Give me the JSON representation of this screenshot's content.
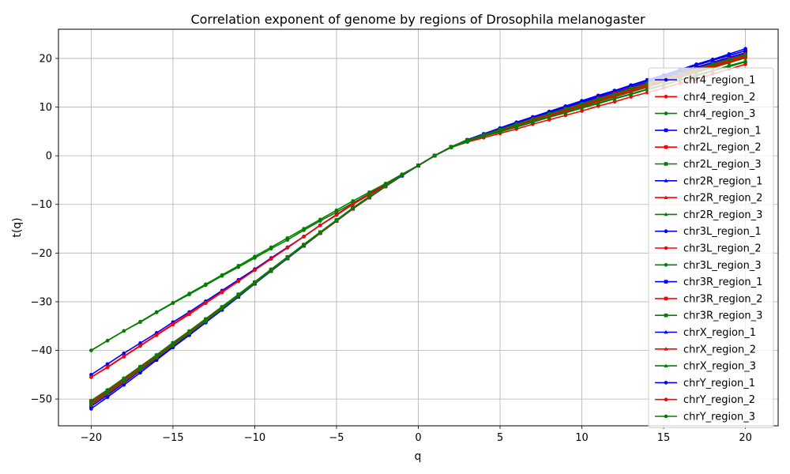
{
  "chart_data": {
    "type": "line",
    "title": "Correlation exponent of genome by regions of Drosophila melanogaster",
    "xlabel": "q",
    "ylabel": "t(q)",
    "xlim": [
      -22,
      22
    ],
    "ylim": [
      -55.5,
      26
    ],
    "x_ticks": [
      -20,
      -15,
      -10,
      -5,
      0,
      5,
      10,
      15,
      20
    ],
    "y_ticks": [
      -50,
      -40,
      -30,
      -20,
      -10,
      0,
      10,
      20
    ],
    "grid": true,
    "legend_position": "right",
    "x": [
      -20,
      -19,
      -18,
      -17,
      -16,
      -15,
      -14,
      -13,
      -12,
      -11,
      -10,
      -9,
      -8,
      -7,
      -6,
      -5,
      -4,
      -3,
      -2,
      -1,
      0,
      1,
      2,
      3,
      4,
      5,
      6,
      7,
      8,
      9,
      10,
      11,
      12,
      13,
      14,
      15,
      16,
      17,
      18,
      19,
      20
    ],
    "series": [
      {
        "name": "chr4_region_1",
        "color": "#0000ff",
        "marker": "circle",
        "values": [
          -50.5,
          -48.3,
          -46.0,
          -43.6,
          -41.2,
          -38.8,
          -36.4,
          -34.0,
          -31.5,
          -28.9,
          -26.2,
          -23.6,
          -21.0,
          -18.4,
          -15.8,
          -13.4,
          -10.8,
          -8.6,
          -6.2,
          -4.0,
          -2.0,
          0.0,
          1.8,
          3.2,
          4.3,
          5.3,
          6.4,
          7.5,
          8.6,
          9.6,
          10.7,
          11.7,
          12.8,
          13.8,
          14.9,
          15.9,
          17.0,
          18.0,
          19.0,
          20.0,
          21.0
        ]
      },
      {
        "name": "chr4_region_2",
        "color": "#ff0000",
        "marker": "circle",
        "values": [
          -45.5,
          -43.5,
          -41.3,
          -39.1,
          -36.9,
          -34.7,
          -32.6,
          -30.3,
          -28.1,
          -25.8,
          -23.5,
          -21.2,
          -18.9,
          -16.6,
          -14.3,
          -12.2,
          -10.0,
          -8.0,
          -6.0,
          -3.9,
          -2.0,
          0.0,
          1.7,
          2.8,
          3.7,
          4.6,
          5.5,
          6.5,
          7.4,
          8.3,
          9.2,
          10.2,
          11.1,
          12.1,
          13.0,
          13.9,
          14.9,
          15.8,
          16.8,
          17.8,
          18.8
        ]
      },
      {
        "name": "chr4_region_3",
        "color": "#008000",
        "marker": "circle",
        "values": [
          -40.0,
          -38.0,
          -36.0,
          -34.2,
          -32.2,
          -30.3,
          -28.5,
          -26.6,
          -24.7,
          -22.9,
          -21.0,
          -19.1,
          -17.3,
          -15.3,
          -13.4,
          -11.6,
          -9.7,
          -7.8,
          -5.8,
          -3.9,
          -2.0,
          0.0,
          1.7,
          3.0,
          4.0,
          4.9,
          5.9,
          6.9,
          7.9,
          8.9,
          9.9,
          10.8,
          11.8,
          12.7,
          13.7,
          14.6,
          15.6,
          16.6,
          17.5,
          18.5,
          19.4
        ]
      },
      {
        "name": "chr2L_region_1",
        "color": "#0000ff",
        "marker": "square",
        "values": [
          -51.5,
          -49.2,
          -46.7,
          -44.2,
          -41.7,
          -39.2,
          -36.7,
          -34.2,
          -31.6,
          -29.0,
          -26.3,
          -23.7,
          -21.1,
          -18.5,
          -15.9,
          -13.4,
          -10.9,
          -8.6,
          -6.3,
          -4.1,
          -2.0,
          0.0,
          1.8,
          3.2,
          4.4,
          5.5,
          6.6,
          7.7,
          8.8,
          9.8,
          10.9,
          12.0,
          13.0,
          14.1,
          15.1,
          16.2,
          17.2,
          18.2,
          19.2,
          20.2,
          21.2
        ]
      },
      {
        "name": "chr2L_region_2",
        "color": "#ff0000",
        "marker": "square",
        "values": [
          -51.0,
          -48.7,
          -46.3,
          -43.9,
          -41.4,
          -38.9,
          -36.5,
          -34.0,
          -31.4,
          -28.8,
          -26.2,
          -23.7,
          -21.1,
          -18.5,
          -15.9,
          -13.4,
          -10.8,
          -8.5,
          -6.2,
          -4.0,
          -2.0,
          0.0,
          1.8,
          3.1,
          4.2,
          5.2,
          6.2,
          7.3,
          8.3,
          9.3,
          10.3,
          11.3,
          12.3,
          13.3,
          14.3,
          15.3,
          16.3,
          17.3,
          18.3,
          19.3,
          20.3
        ]
      },
      {
        "name": "chr2L_region_3",
        "color": "#008000",
        "marker": "square",
        "values": [
          -51.0,
          -48.8,
          -46.4,
          -44.0,
          -41.5,
          -39.0,
          -36.5,
          -34.0,
          -31.4,
          -28.8,
          -26.2,
          -23.6,
          -21.0,
          -18.4,
          -15.8,
          -13.3,
          -10.8,
          -8.5,
          -6.2,
          -4.0,
          -2.0,
          0.0,
          1.8,
          3.2,
          4.3,
          5.4,
          6.4,
          7.5,
          8.6,
          9.6,
          10.7,
          11.7,
          12.8,
          13.8,
          14.9,
          15.9,
          16.9,
          17.9,
          18.9,
          19.9,
          20.9
        ]
      },
      {
        "name": "chr2R_region_1",
        "color": "#0000ff",
        "marker": "triangle",
        "values": [
          -50.8,
          -48.5,
          -46.1,
          -43.7,
          -41.3,
          -38.8,
          -36.4,
          -33.9,
          -31.3,
          -28.7,
          -26.1,
          -23.5,
          -20.9,
          -18.3,
          -15.8,
          -13.3,
          -10.8,
          -8.5,
          -6.2,
          -4.0,
          -2.0,
          0.0,
          1.8,
          3.2,
          4.4,
          5.5,
          6.6,
          7.6,
          8.7,
          9.8,
          10.8,
          11.9,
          12.9,
          14.0,
          15.0,
          16.0,
          17.1,
          18.1,
          19.1,
          20.1,
          21.1
        ]
      },
      {
        "name": "chr2R_region_2",
        "color": "#ff0000",
        "marker": "triangle",
        "values": [
          -50.8,
          -48.6,
          -46.2,
          -43.8,
          -41.3,
          -38.8,
          -36.4,
          -33.9,
          -31.3,
          -28.8,
          -26.2,
          -23.6,
          -21.0,
          -18.4,
          -15.8,
          -13.3,
          -10.8,
          -8.5,
          -6.2,
          -4.0,
          -2.0,
          0.0,
          1.8,
          3.1,
          4.2,
          5.2,
          6.3,
          7.3,
          8.3,
          9.3,
          10.3,
          11.4,
          12.4,
          13.4,
          14.4,
          15.4,
          16.4,
          17.4,
          18.4,
          19.4,
          20.4
        ]
      },
      {
        "name": "chr2R_region_3",
        "color": "#008000",
        "marker": "triangle",
        "values": [
          -50.6,
          -48.3,
          -45.9,
          -43.5,
          -41.1,
          -38.6,
          -36.2,
          -33.7,
          -31.1,
          -28.6,
          -26.0,
          -23.4,
          -20.8,
          -18.3,
          -15.7,
          -13.2,
          -10.7,
          -8.4,
          -6.2,
          -4.0,
          -2.0,
          0.0,
          1.8,
          3.1,
          4.2,
          5.2,
          6.3,
          7.3,
          8.4,
          9.4,
          10.4,
          11.4,
          12.4,
          13.4,
          14.4,
          15.5,
          16.5,
          17.5,
          18.5,
          19.5,
          20.5
        ]
      },
      {
        "name": "chr3L_region_1",
        "color": "#0000ff",
        "marker": "circle",
        "values": [
          -45.0,
          -42.8,
          -40.6,
          -38.5,
          -36.4,
          -34.2,
          -32.1,
          -29.9,
          -27.7,
          -25.5,
          -23.3,
          -21.0,
          -18.8,
          -16.6,
          -14.3,
          -12.1,
          -9.9,
          -7.9,
          -5.9,
          -3.9,
          -2.0,
          0.0,
          1.8,
          3.1,
          4.3,
          5.4,
          6.5,
          7.6,
          8.6,
          9.7,
          10.8,
          11.8,
          12.9,
          13.9,
          15.0,
          16.0,
          17.0,
          18.1,
          19.1,
          20.1,
          21.1
        ]
      },
      {
        "name": "chr3L_region_2",
        "color": "#ff0000",
        "marker": "circle",
        "values": [
          -45.5,
          -43.4,
          -41.2,
          -39.0,
          -36.8,
          -34.6,
          -32.4,
          -30.2,
          -28.0,
          -25.8,
          -23.5,
          -21.2,
          -18.9,
          -16.6,
          -14.3,
          -12.1,
          -9.9,
          -7.9,
          -5.9,
          -3.9,
          -2.0,
          0.0,
          1.8,
          3.0,
          4.1,
          5.1,
          6.1,
          7.1,
          8.1,
          9.1,
          10.1,
          11.1,
          12.1,
          13.1,
          14.1,
          15.1,
          16.1,
          17.1,
          18.1,
          19.1,
          20.1
        ]
      },
      {
        "name": "chr3L_region_3",
        "color": "#008000",
        "marker": "circle",
        "values": [
          -40.0,
          -38.0,
          -36.0,
          -34.1,
          -32.1,
          -30.2,
          -28.3,
          -26.4,
          -24.5,
          -22.6,
          -20.7,
          -18.8,
          -16.9,
          -15.0,
          -13.1,
          -11.2,
          -9.3,
          -7.5,
          -5.7,
          -3.8,
          -2.0,
          0.0,
          1.7,
          3.0,
          4.1,
          5.1,
          6.1,
          7.1,
          8.2,
          9.2,
          10.2,
          11.2,
          12.2,
          13.2,
          14.2,
          15.2,
          16.2,
          17.2,
          18.2,
          19.2,
          20.2
        ]
      },
      {
        "name": "chr3R_region_1",
        "color": "#0000ff",
        "marker": "square",
        "values": [
          -50.5,
          -48.3,
          -45.9,
          -43.5,
          -41.1,
          -38.7,
          -36.3,
          -33.8,
          -31.3,
          -28.7,
          -26.1,
          -23.5,
          -20.9,
          -18.4,
          -15.8,
          -13.3,
          -10.8,
          -8.5,
          -6.2,
          -4.0,
          -2.0,
          0.0,
          1.8,
          3.2,
          4.4,
          5.5,
          6.7,
          7.8,
          8.9,
          10.0,
          11.1,
          12.2,
          13.3,
          14.4,
          15.5,
          16.5,
          17.6,
          18.6,
          19.6,
          20.6,
          21.6
        ]
      },
      {
        "name": "chr3R_region_2",
        "color": "#ff0000",
        "marker": "square",
        "values": [
          -50.6,
          -48.4,
          -46.0,
          -43.6,
          -41.1,
          -38.7,
          -36.3,
          -33.8,
          -31.2,
          -28.7,
          -26.1,
          -23.5,
          -20.9,
          -18.4,
          -15.8,
          -13.3,
          -10.8,
          -8.5,
          -6.2,
          -4.0,
          -2.0,
          0.0,
          1.8,
          3.1,
          4.2,
          5.2,
          6.3,
          7.3,
          8.3,
          9.4,
          10.4,
          11.4,
          12.4,
          13.4,
          14.4,
          15.4,
          16.4,
          17.4,
          18.4,
          19.4,
          20.4
        ]
      },
      {
        "name": "chr3R_region_3",
        "color": "#008000",
        "marker": "square",
        "values": [
          -50.4,
          -48.2,
          -45.8,
          -43.4,
          -41.0,
          -38.5,
          -36.1,
          -33.6,
          -31.1,
          -28.5,
          -26.0,
          -23.4,
          -20.8,
          -18.3,
          -15.7,
          -13.2,
          -10.7,
          -8.4,
          -6.2,
          -4.0,
          -2.0,
          0.0,
          1.8,
          3.1,
          4.3,
          5.3,
          6.4,
          7.5,
          8.5,
          9.6,
          10.6,
          11.6,
          12.6,
          13.7,
          14.7,
          15.7,
          16.7,
          17.7,
          18.7,
          19.7,
          20.7
        ]
      },
      {
        "name": "chrX_region_1",
        "color": "#0000ff",
        "marker": "triangle",
        "values": [
          -50.4,
          -48.2,
          -45.8,
          -43.4,
          -41.0,
          -38.6,
          -36.2,
          -33.7,
          -31.2,
          -28.6,
          -26.0,
          -23.4,
          -20.9,
          -18.3,
          -15.8,
          -13.3,
          -10.8,
          -8.5,
          -6.2,
          -4.0,
          -2.0,
          0.0,
          1.8,
          3.2,
          4.4,
          5.6,
          6.7,
          7.8,
          8.9,
          10.0,
          11.1,
          12.2,
          13.3,
          14.4,
          15.4,
          16.5,
          17.5,
          18.6,
          19.6,
          20.6,
          21.6
        ]
      },
      {
        "name": "chrX_region_2",
        "color": "#ff0000",
        "marker": "triangle",
        "values": [
          -50.5,
          -48.3,
          -45.9,
          -43.5,
          -41.0,
          -38.6,
          -36.2,
          -33.7,
          -31.1,
          -28.6,
          -26.0,
          -23.4,
          -20.9,
          -18.3,
          -15.8,
          -13.3,
          -10.8,
          -8.5,
          -6.2,
          -4.0,
          -2.0,
          0.0,
          1.8,
          3.1,
          4.2,
          5.3,
          6.3,
          7.4,
          8.4,
          9.4,
          10.5,
          11.5,
          12.5,
          13.5,
          14.5,
          15.5,
          16.5,
          17.6,
          18.6,
          19.6,
          20.6
        ]
      },
      {
        "name": "chrX_region_3",
        "color": "#008000",
        "marker": "triangle",
        "values": [
          -50.3,
          -48.1,
          -45.7,
          -43.3,
          -40.9,
          -38.4,
          -36.0,
          -33.5,
          -31.0,
          -28.5,
          -25.9,
          -23.3,
          -20.8,
          -18.2,
          -15.7,
          -13.2,
          -10.7,
          -8.4,
          -6.2,
          -4.0,
          -2.0,
          0.0,
          1.7,
          2.9,
          4.0,
          5.0,
          5.9,
          6.9,
          7.9,
          8.8,
          9.8,
          10.7,
          11.7,
          12.6,
          13.6,
          14.5,
          15.5,
          16.4,
          17.4,
          18.3,
          19.3
        ]
      },
      {
        "name": "chrY_region_1",
        "color": "#0000ff",
        "marker": "circle",
        "values": [
          -52.0,
          -49.6,
          -47.1,
          -44.6,
          -42.0,
          -39.4,
          -36.9,
          -34.3,
          -31.7,
          -29.0,
          -26.3,
          -23.7,
          -21.1,
          -18.5,
          -15.9,
          -13.4,
          -10.9,
          -8.6,
          -6.3,
          -4.1,
          -2.0,
          0.0,
          1.8,
          3.3,
          4.5,
          5.7,
          6.9,
          8.0,
          9.1,
          10.2,
          11.3,
          12.4,
          13.4,
          14.5,
          15.6,
          16.6,
          17.7,
          18.8,
          19.8,
          20.9,
          22.0
        ]
      },
      {
        "name": "chrY_region_2",
        "color": "#ff0000",
        "marker": "circle",
        "values": [
          -51.2,
          -48.9,
          -46.5,
          -44.0,
          -41.5,
          -39.0,
          -36.5,
          -34.0,
          -31.4,
          -28.8,
          -26.2,
          -23.6,
          -21.0,
          -18.4,
          -15.9,
          -13.4,
          -10.9,
          -8.6,
          -6.3,
          -4.0,
          -2.0,
          0.0,
          1.8,
          3.2,
          4.3,
          5.4,
          6.5,
          7.6,
          8.6,
          9.7,
          10.7,
          11.8,
          12.8,
          13.9,
          14.9,
          15.9,
          16.9,
          17.9,
          18.9,
          19.9,
          20.9
        ]
      },
      {
        "name": "chrY_region_3",
        "color": "#008000",
        "marker": "circle",
        "values": [
          -51.0,
          -48.7,
          -46.3,
          -43.9,
          -41.4,
          -38.9,
          -36.5,
          -34.0,
          -31.4,
          -28.8,
          -26.2,
          -23.6,
          -21.0,
          -18.4,
          -15.8,
          -13.3,
          -10.8,
          -8.5,
          -6.2,
          -4.0,
          -2.0,
          0.0,
          1.8,
          3.2,
          4.3,
          5.4,
          6.5,
          7.5,
          8.6,
          9.6,
          10.7,
          11.7,
          12.7,
          13.8,
          14.8,
          15.8,
          16.8,
          17.8,
          18.8,
          19.8,
          20.8
        ]
      }
    ]
  }
}
